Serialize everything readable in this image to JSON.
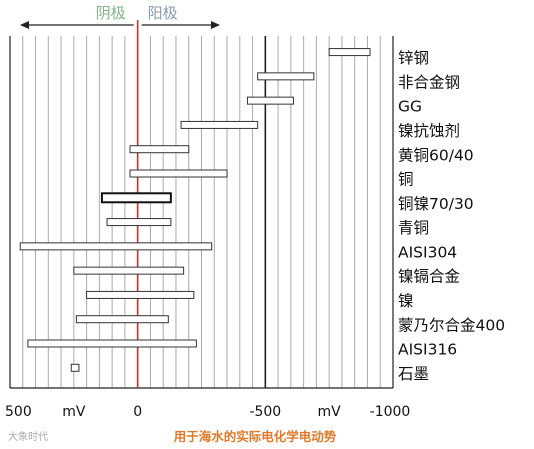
{
  "chart_data": {
    "type": "range-bar",
    "direction_labels": {
      "cathode": "阴极",
      "anode": "阳极"
    },
    "x_ticks": [
      {
        "value": 500,
        "label": "500"
      },
      {
        "value": 250,
        "label": "mV"
      },
      {
        "value": 0,
        "label": "0"
      },
      {
        "value": -500,
        "label": "-500"
      },
      {
        "value": -750,
        "label": "mV"
      },
      {
        "value": -1000,
        "label": "-1000"
      }
    ],
    "xlim": [
      500,
      -1000
    ],
    "units": "mV",
    "caption": "用于海水的实际电化学电动势",
    "watermark": "大象时代",
    "materials": [
      {
        "label": "锌钢",
        "from": -750,
        "to": -910
      },
      {
        "label": "非合金钢",
        "from": -470,
        "to": -690
      },
      {
        "label": "GG",
        "from": -430,
        "to": -610
      },
      {
        "label": "镍抗蚀剂",
        "from": -170,
        "to": -470
      },
      {
        "label": "黄铜60/40",
        "from": 30,
        "to": -200
      },
      {
        "label": "铜",
        "from": 30,
        "to": -350
      },
      {
        "label": "铜镍70/30",
        "from": 140,
        "to": -130,
        "highlight": true
      },
      {
        "label": "青铜",
        "from": 120,
        "to": -130
      },
      {
        "label": "AISI304",
        "from": 460,
        "to": -290
      },
      {
        "label": "镍镉合金",
        "from": 250,
        "to": -180
      },
      {
        "label": "镍",
        "from": 200,
        "to": -220
      },
      {
        "label": "蒙乃尔合金400",
        "from": 240,
        "to": -120
      },
      {
        "label": "AISI316",
        "from": 430,
        "to": -230
      },
      {
        "label": "石墨",
        "from": 260,
        "to": 230
      }
    ],
    "grid_step": 50,
    "colors": {
      "zero_line": "#c0392b",
      "grid": "#aaaaaa",
      "cathode_text": "#7fb48a",
      "anode_text": "#8a9cb5",
      "caption": "#e07a2a",
      "bar_stroke": "#333333"
    }
  }
}
